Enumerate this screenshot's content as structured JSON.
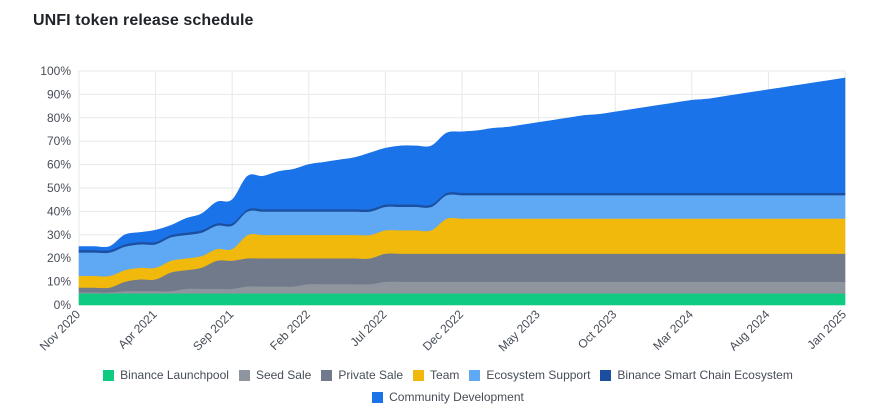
{
  "title": "UNFI token release schedule",
  "chart_data": {
    "type": "area",
    "stacked": true,
    "title": "UNFI token release schedule",
    "xlabel": "",
    "ylabel": "",
    "ylim": [
      0,
      100
    ],
    "y_ticks": [
      "0%",
      "10%",
      "20%",
      "30%",
      "40%",
      "50%",
      "60%",
      "70%",
      "80%",
      "90%",
      "100%"
    ],
    "x_tick_labels": [
      "Nov 2020",
      "Apr 2021",
      "Sep 2021",
      "Feb 2022",
      "Jul 2022",
      "Dec 2022",
      "May 2023",
      "Oct 2023",
      "Mar 2024",
      "Aug 2024",
      "Jan 2025"
    ],
    "grid": true,
    "legend_position": "bottom",
    "x_months": [
      "2020-11",
      "2020-12",
      "2021-01",
      "2021-02",
      "2021-03",
      "2021-04",
      "2021-05",
      "2021-06",
      "2021-07",
      "2021-08",
      "2021-09",
      "2021-10",
      "2021-11",
      "2021-12",
      "2022-01",
      "2022-02",
      "2022-03",
      "2022-04",
      "2022-05",
      "2022-06",
      "2022-07",
      "2022-08",
      "2022-09",
      "2022-10",
      "2022-11",
      "2022-12",
      "2023-01",
      "2023-02",
      "2023-03",
      "2023-04",
      "2023-05",
      "2023-06",
      "2023-07",
      "2023-08",
      "2023-09",
      "2023-10",
      "2023-11",
      "2023-12",
      "2024-01",
      "2024-02",
      "2024-03",
      "2024-04",
      "2024-05",
      "2024-06",
      "2024-07",
      "2024-08",
      "2024-09",
      "2024-10",
      "2024-11",
      "2024-12",
      "2025-01"
    ],
    "series": [
      {
        "name": "Binance Launchpool",
        "color": "#0ecb81",
        "values": [
          5,
          5,
          5,
          5,
          5,
          5,
          5,
          5,
          5,
          5,
          5,
          5,
          5,
          5,
          5,
          5,
          5,
          5,
          5,
          5,
          5,
          5,
          5,
          5,
          5,
          5,
          5,
          5,
          5,
          5,
          5,
          5,
          5,
          5,
          5,
          5,
          5,
          5,
          5,
          5,
          5,
          5,
          5,
          5,
          5,
          5,
          5,
          5,
          5,
          5,
          5
        ]
      },
      {
        "name": "Seed Sale",
        "color": "#8f959e",
        "values": [
          0.5,
          0.5,
          0.5,
          1,
          1,
          1,
          1,
          2,
          2,
          2,
          2,
          3,
          3,
          3,
          3,
          4,
          4,
          4,
          4,
          4,
          5,
          5,
          5,
          5,
          5,
          5,
          5,
          5,
          5,
          5,
          5,
          5,
          5,
          5,
          5,
          5,
          5,
          5,
          5,
          5,
          5,
          5,
          5,
          5,
          5,
          5,
          5,
          5,
          5,
          5,
          5
        ]
      },
      {
        "name": "Private Sale",
        "color": "#707a8a",
        "values": [
          2,
          2,
          2,
          4,
          5,
          5,
          8,
          8,
          9,
          12,
          12,
          12,
          12,
          12,
          12,
          11,
          11,
          11,
          11,
          11,
          12,
          12,
          12,
          12,
          12,
          12,
          12,
          12,
          12,
          12,
          12,
          12,
          12,
          12,
          12,
          12,
          12,
          12,
          12,
          12,
          12,
          12,
          12,
          12,
          12,
          12,
          12,
          12,
          12,
          12,
          12
        ]
      },
      {
        "name": "Team",
        "color": "#f0b90b",
        "values": [
          5,
          5,
          5,
          5,
          5,
          5,
          5,
          5,
          5,
          5,
          5,
          10,
          10,
          10,
          10,
          10,
          10,
          10,
          10,
          10,
          10,
          10,
          10,
          10,
          15,
          15,
          15,
          15,
          15,
          15,
          15,
          15,
          15,
          15,
          15,
          15,
          15,
          15,
          15,
          15,
          15,
          15,
          15,
          15,
          15,
          15,
          15,
          15,
          15,
          15,
          15
        ]
      },
      {
        "name": "Ecosystem Support",
        "color": "#5ea8f4",
        "values": [
          10,
          10,
          10,
          10,
          10,
          10,
          10,
          10,
          10,
          10,
          10,
          10,
          10,
          10,
          10,
          10,
          10,
          10,
          10,
          10,
          10,
          10,
          10,
          10,
          10,
          10,
          10,
          10,
          10,
          10,
          10,
          10,
          10,
          10,
          10,
          10,
          10,
          10,
          10,
          10,
          10,
          10,
          10,
          10,
          10,
          10,
          10,
          10,
          10,
          10,
          10
        ]
      },
      {
        "name": "Binance Smart Chain Ecosystem",
        "color": "#1d4fa0",
        "values": [
          1,
          1,
          1,
          1,
          1,
          1,
          1,
          1,
          1,
          1,
          1,
          1,
          1,
          1,
          1,
          1,
          1,
          1,
          1,
          1,
          1,
          1,
          1,
          1,
          1,
          1,
          1,
          1,
          1,
          1,
          1,
          1,
          1,
          1,
          1,
          1,
          1,
          1,
          1,
          1,
          1,
          1,
          1,
          1,
          1,
          1,
          1,
          1,
          1,
          1,
          1
        ]
      },
      {
        "name": "Community Development",
        "color": "#1a73e8",
        "values": [
          1.5,
          1.5,
          1.5,
          4,
          4,
          5,
          4,
          6,
          7,
          9,
          10,
          14,
          14,
          16,
          17,
          19,
          20,
          21,
          22,
          24,
          24,
          25,
          25,
          25,
          25.5,
          26,
          26.5,
          27.5,
          28,
          29,
          30,
          31,
          32,
          33,
          33.5,
          34.5,
          35.5,
          36.5,
          37.5,
          38.5,
          39.5,
          40,
          41,
          42,
          43,
          44,
          45,
          46,
          47,
          48,
          49
        ]
      }
    ]
  }
}
